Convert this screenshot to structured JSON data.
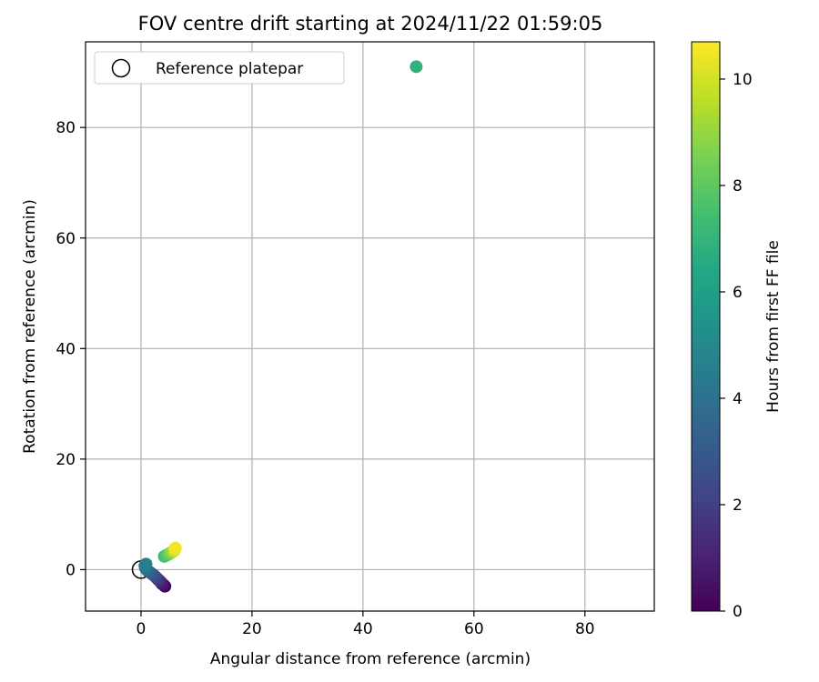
{
  "chart_data": {
    "type": "scatter",
    "title": "FOV centre drift starting at 2024/11/22 01:59:05",
    "xlabel": "Angular distance from reference (arcmin)",
    "ylabel": "Rotation from reference (arcmin)",
    "xlim": [
      -10,
      92.5
    ],
    "ylim": [
      -7.5,
      95.5
    ],
    "xticks": [
      0,
      20,
      40,
      60,
      80
    ],
    "yticks": [
      0,
      20,
      40,
      60,
      80
    ],
    "grid": true,
    "legend": {
      "placement": "upper-left",
      "entries": [
        "Reference platepar"
      ]
    },
    "reference": {
      "x": 0,
      "y": 0,
      "label": "Reference platepar"
    },
    "colorbar": {
      "label": "Hours from first FF file",
      "range": [
        0,
        10.7
      ],
      "ticks": [
        0,
        2,
        4,
        6,
        8,
        10
      ],
      "colormap": "viridis"
    },
    "points": [
      {
        "x": 4.3,
        "y": -3.0,
        "c": 0.0
      },
      {
        "x": 4.1,
        "y": -2.8,
        "c": 0.3
      },
      {
        "x": 3.8,
        "y": -2.6,
        "c": 0.6
      },
      {
        "x": 3.6,
        "y": -2.3,
        "c": 0.9
      },
      {
        "x": 3.3,
        "y": -2.0,
        "c": 1.2
      },
      {
        "x": 3.0,
        "y": -1.7,
        "c": 1.6
      },
      {
        "x": 2.7,
        "y": -1.4,
        "c": 2.0
      },
      {
        "x": 2.4,
        "y": -1.1,
        "c": 2.4
      },
      {
        "x": 2.0,
        "y": -0.8,
        "c": 2.8
      },
      {
        "x": 1.6,
        "y": -0.5,
        "c": 3.1
      },
      {
        "x": 1.3,
        "y": -0.3,
        "c": 3.4
      },
      {
        "x": 1.0,
        "y": 0.0,
        "c": 3.7
      },
      {
        "x": 0.8,
        "y": 0.3,
        "c": 4.0
      },
      {
        "x": 0.7,
        "y": 0.7,
        "c": 4.3
      },
      {
        "x": 0.9,
        "y": 1.0,
        "c": 4.6
      },
      {
        "x": 49.6,
        "y": 91.0,
        "c": 6.9
      },
      {
        "x": 4.2,
        "y": 2.4,
        "c": 7.3
      },
      {
        "x": 4.6,
        "y": 2.6,
        "c": 7.7
      },
      {
        "x": 5.0,
        "y": 2.8,
        "c": 8.1
      },
      {
        "x": 5.3,
        "y": 3.0,
        "c": 8.5
      },
      {
        "x": 5.6,
        "y": 3.2,
        "c": 8.9
      },
      {
        "x": 5.8,
        "y": 3.3,
        "c": 9.3
      },
      {
        "x": 6.0,
        "y": 3.5,
        "c": 9.7
      },
      {
        "x": 6.1,
        "y": 3.7,
        "c": 10.1
      },
      {
        "x": 6.2,
        "y": 3.9,
        "c": 10.5
      }
    ]
  }
}
